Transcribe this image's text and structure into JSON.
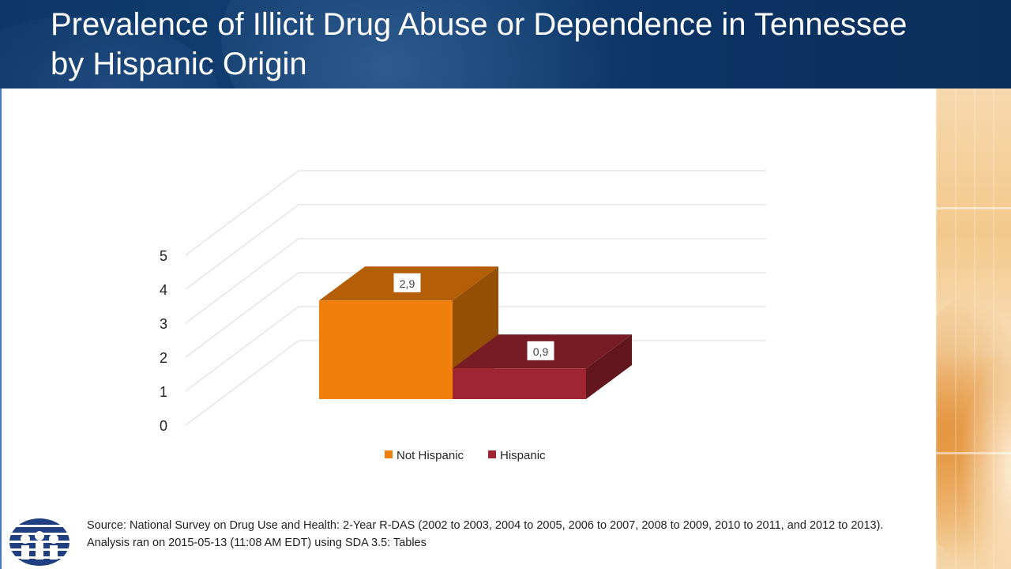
{
  "slide": {
    "title": "Prevalence of Illicit Drug Abuse or Dependence in Tennessee by Hispanic Origin",
    "source": "Source: National Survey on Drug Use and Health: 2-Year R-DAS (2002 to 2003, 2004 to 2005, 2006 to 2007, 2008 to 2009, 2010 to 2011, and 2012 to 2013). Analysis ran on 2015-05-13 (11:08 AM EDT) using SDA 3.5: Tables"
  },
  "chart_data": {
    "type": "bar",
    "style": "3d-clustered",
    "categories": [
      ""
    ],
    "series": [
      {
        "name": "Not Hispanic",
        "values": [
          2.9
        ],
        "color": "#f07f0b",
        "label": "2,9"
      },
      {
        "name": "Hispanic",
        "values": [
          0.9
        ],
        "color": "#9e2531",
        "label": "0,9"
      }
    ],
    "title": "",
    "xlabel": "",
    "ylabel": "",
    "ylim": [
      0,
      5
    ],
    "yticks": [
      "0",
      "1",
      "2",
      "3",
      "4",
      "5"
    ],
    "grid": true,
    "legend": "bottom"
  }
}
